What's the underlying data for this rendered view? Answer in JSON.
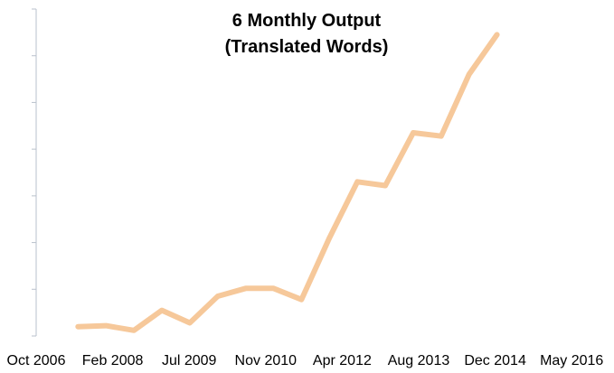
{
  "chart_data": {
    "type": "line",
    "title_lines": [
      "6 Monthly Output",
      "(Translated Words)"
    ],
    "xlabel": "",
    "ylabel": "",
    "x_ticks": [
      "Oct 2006",
      "Feb 2008",
      "Jul 2009",
      "Nov 2010",
      "Apr 2012",
      "Aug 2013",
      "Dec 2014",
      "May 2016"
    ],
    "xlim": [
      "Oct 2006",
      "May 2016"
    ],
    "y_tick_count": 7,
    "grid": false,
    "legend": "none",
    "series": [
      {
        "color": "#f6c89a",
        "x": [
          "Jul 2007",
          "Jan 2008",
          "Jul 2008",
          "Jan 2009",
          "Jul 2009",
          "Jan 2010",
          "Jul 2010",
          "Jan 2011",
          "Jul 2011",
          "Jan 2012",
          "Jul 2012",
          "Jan 2013",
          "Jul 2013",
          "Jan 2014",
          "Jul 2014",
          "Jan 2015"
        ],
        "values": [
          0.2,
          0.22,
          0.12,
          0.55,
          0.28,
          0.85,
          1.02,
          1.02,
          0.78,
          2.1,
          3.3,
          3.22,
          4.35,
          4.28,
          5.6,
          6.45
        ]
      }
    ]
  }
}
